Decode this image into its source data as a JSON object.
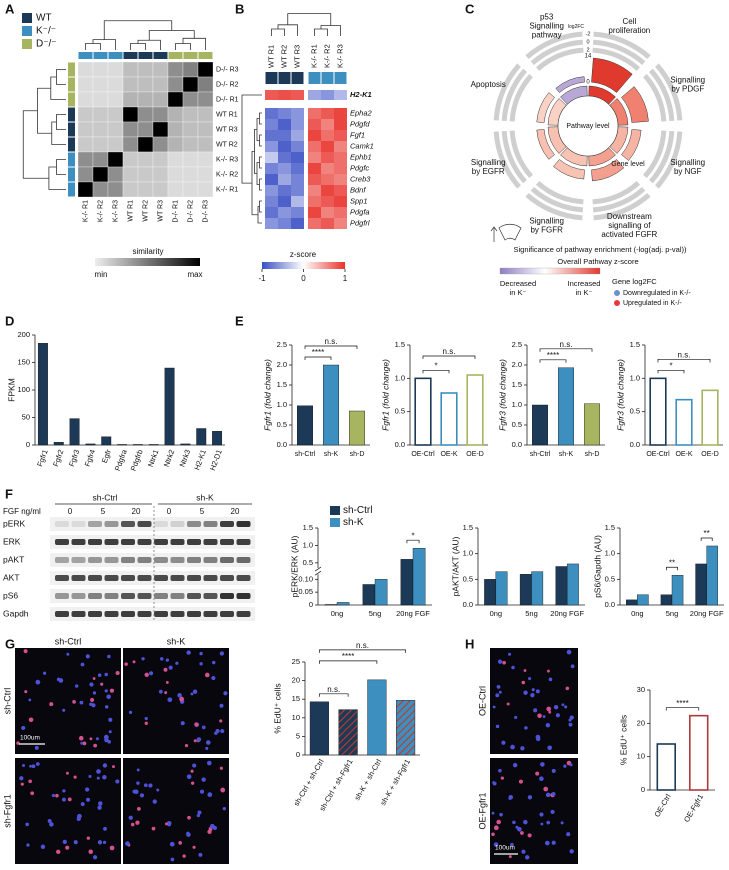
{
  "panel_labels": [
    "A",
    "B",
    "C",
    "D",
    "E",
    "F",
    "G",
    "H"
  ],
  "heatmap_a": {
    "legend": [
      {
        "name": "WT",
        "color": "#1c3a57"
      },
      {
        "name": "K⁻/⁻",
        "color": "#3d8fc0"
      },
      {
        "name": "D⁻/⁻",
        "color": "#a8b560"
      }
    ],
    "rows": [
      "D-/- R3",
      "D-/- R2",
      "D-/- R1",
      "WT R1",
      "WT R3",
      "WT R2",
      "K-/- R3",
      "K-/- R2",
      "K-/- R1"
    ],
    "columns": [
      "K-/- R1",
      "K-/- R2",
      "K-/- R3",
      "WT R1",
      "WT R2",
      "WT R3",
      "D-/- R1",
      "D-/- R2",
      "D-/- R3"
    ],
    "values": [
      [
        0.2,
        0.2,
        0.2,
        0.35,
        0.35,
        0.35,
        0.55,
        0.6,
        1
      ],
      [
        0.2,
        0.2,
        0.2,
        0.35,
        0.35,
        0.35,
        0.55,
        1,
        0.6
      ],
      [
        0.2,
        0.2,
        0.2,
        0.4,
        0.4,
        0.4,
        1,
        0.55,
        0.55
      ],
      [
        0.3,
        0.3,
        0.3,
        1,
        0.55,
        0.55,
        0.4,
        0.35,
        0.35
      ],
      [
        0.3,
        0.3,
        0.3,
        0.55,
        0.55,
        1,
        0.4,
        0.35,
        0.35
      ],
      [
        0.3,
        0.3,
        0.3,
        0.55,
        1,
        0.55,
        0.4,
        0.35,
        0.35
      ],
      [
        0.55,
        0.55,
        1,
        0.3,
        0.3,
        0.3,
        0.2,
        0.2,
        0.2
      ],
      [
        0.55,
        1,
        0.55,
        0.3,
        0.3,
        0.3,
        0.2,
        0.2,
        0.2
      ],
      [
        1,
        0.55,
        0.55,
        0.3,
        0.3,
        0.3,
        0.2,
        0.2,
        0.2
      ]
    ],
    "colorbar_label": "similarity",
    "colorbar_min": "min",
    "colorbar_max": "max"
  },
  "heatmap_b": {
    "columns": [
      "WT R1",
      "WT R2",
      "WT R3",
      "K-/- R1",
      "K-/- R2",
      "K-/- R3"
    ],
    "rows": [
      "H2-K1",
      "Epha2",
      "Pdgfd",
      "Fgf1",
      "Camk1",
      "Ephb1",
      "Pdgfc",
      "Creb3",
      "Bdnf",
      "Spp1",
      "Pdgfa",
      "Pdgfrl"
    ],
    "values": [
      [
        0.8,
        0.85,
        0.8,
        -0.5,
        -0.6,
        -0.4
      ],
      [
        -0.8,
        -0.7,
        -0.6,
        0.7,
        0.8,
        0.9
      ],
      [
        -0.7,
        -0.9,
        -0.6,
        0.8,
        0.6,
        0.9
      ],
      [
        -0.8,
        -0.8,
        -0.5,
        0.9,
        0.7,
        0.8
      ],
      [
        -0.6,
        -0.9,
        -0.7,
        0.7,
        0.9,
        0.6
      ],
      [
        -0.3,
        -0.8,
        -0.9,
        0.6,
        0.8,
        0.7
      ],
      [
        -0.7,
        -0.6,
        -0.8,
        0.9,
        0.6,
        0.7
      ],
      [
        -0.9,
        -0.5,
        -0.7,
        0.8,
        0.7,
        0.6
      ],
      [
        -0.6,
        -0.8,
        -0.7,
        0.6,
        0.9,
        0.8
      ],
      [
        -0.7,
        -0.9,
        -0.4,
        0.7,
        0.8,
        0.9
      ],
      [
        -0.8,
        -0.6,
        -0.7,
        0.9,
        0.6,
        0.7
      ],
      [
        -0.6,
        -0.7,
        -0.9,
        0.7,
        0.8,
        0.6
      ]
    ],
    "colorbar_label": "z-score",
    "zlim": [
      -1,
      1
    ],
    "zticks": [
      -1,
      0,
      1
    ]
  },
  "pathway_circle": {
    "pathways": [
      [
        "p53",
        "Signalling",
        "pathway"
      ],
      [
        "Cell",
        "proliferation"
      ],
      [
        "Signalling",
        "by PDGF"
      ],
      [
        "Signalling",
        "by NGF"
      ],
      [
        "Downstream",
        "signalling of",
        "activated FGFR"
      ],
      [
        "Signalling",
        "by FGFR"
      ],
      [
        "Signalling",
        "by EGFR"
      ],
      [
        "Apoptosis"
      ]
    ],
    "ring_colors": [
      "#b9a8d6",
      "#e03a2f",
      "#f08070",
      "#f6b4a4",
      "#f4a090",
      "#f7c3b2",
      "#f7c0b0",
      "#fad2c5"
    ],
    "enrichment": [
      3,
      13,
      9,
      5,
      6,
      5,
      4,
      4
    ],
    "enrichment_lim": [
      0,
      14
    ],
    "enrichment_ticks": [
      14,
      0
    ],
    "gene_ticks": [
      2,
      0,
      -2
    ],
    "gene_axis_label": "log2FC",
    "center": "Pathway level",
    "gene_level": "Gene level",
    "enrichment_label": "Significance of pathway enrichment (-log(adj. p-val))",
    "zscore_label": "Overall Pathway z-score",
    "decreased": [
      "Decreased",
      "in K⁻"
    ],
    "increased": [
      "Increased",
      "in K⁻"
    ],
    "gene_legend_title": "Gene log2FC",
    "gene_legend": [
      {
        "name": "Downregulated in K-/-",
        "color": "#6b8fd1"
      },
      {
        "name": "Upregulated in K-/-",
        "color": "#e8383d"
      }
    ]
  },
  "blot": {
    "dose_label": "FGF ng/ml",
    "groups": [
      "sh-Ctrl",
      "sh-K"
    ],
    "doses": [
      0,
      5,
      20,
      0,
      5,
      20
    ],
    "proteins": [
      "pERK",
      "ERK",
      "pAKT",
      "AKT",
      "pS6",
      "Gapdh"
    ]
  },
  "images_g": {
    "columns": [
      "sh-Ctrl",
      "sh-K"
    ],
    "rows": [
      "sh-Ctrl",
      "sh-Fgfr1"
    ],
    "scale_bar": "100um"
  },
  "images_h": {
    "rows": [
      "OE-Ctrl",
      "OE-Fgfr1"
    ],
    "scale_bar": "100um"
  },
  "chart_data": [
    {
      "type": "bar",
      "ylabel": "FPKM",
      "categories": [
        "Fgfr1",
        "Fgfr2",
        "Fgfr3",
        "Fgfr4",
        "Egfr",
        "Pdgfra",
        "Pdgfrb",
        "Ntrk1",
        "Ntrk2",
        "Ntrk3",
        "H2-K1",
        "H2-D1"
      ],
      "values": [
        185,
        5,
        48,
        2,
        15,
        1,
        1,
        1,
        140,
        2,
        30,
        25
      ],
      "color": "#1c3a57",
      "ylim": [
        0,
        200
      ],
      "yticks": [
        0,
        50,
        100,
        150,
        200
      ]
    },
    {
      "type": "bar",
      "ylabel": "Fgfr1 (fold change)",
      "categories": [
        "sh-Ctrl",
        "sh-K",
        "sh-D"
      ],
      "values": [
        0.98,
        2.0,
        0.85
      ],
      "colors": [
        "#1c3a57",
        "#3d8fc0",
        "#a8b560"
      ],
      "ylim": [
        0,
        2.5
      ],
      "yticks": [
        {
          "value": 0,
          "label": "0.0"
        },
        {
          "value": 0.5,
          "label": "0.5"
        },
        {
          "value": 1,
          "label": "1.0"
        },
        {
          "value": 1.5,
          "label": "1.5"
        },
        {
          "value": 2,
          "label": "2.0"
        },
        {
          "value": 2.5,
          "label": "2.5"
        }
      ],
      "annotations": [
        {
          "label": "****",
          "between": [
            "sh-Ctrl",
            "sh-K"
          ]
        },
        {
          "label": "n.s.",
          "between": [
            "sh-Ctrl",
            "sh-D"
          ]
        }
      ]
    },
    {
      "type": "bar",
      "ylabel": "Fgfr1 (fold change)",
      "categories": [
        "OE-Ctrl",
        "OE-K",
        "OE-D"
      ],
      "values": [
        1.0,
        0.78,
        1.05
      ],
      "colors": [
        "#1c3a57",
        "#3d8fc0",
        "#a8b560"
      ],
      "hollow": true,
      "ylim": [
        0,
        1.5
      ],
      "yticks": [
        {
          "value": 0,
          "label": "0.0"
        },
        {
          "value": 0.5,
          "label": "0.5"
        },
        {
          "value": 1,
          "label": "1.0"
        },
        {
          "value": 1.5,
          "label": "1.5"
        }
      ],
      "annotations": [
        {
          "label": "*",
          "between": [
            "OE-Ctrl",
            "OE-K"
          ]
        },
        {
          "label": "n.s.",
          "between": [
            "OE-Ctrl",
            "OE-D"
          ]
        }
      ]
    },
    {
      "type": "bar",
      "ylabel": "Fgfr3 (fold change)",
      "categories": [
        "sh-Ctrl",
        "sh-K",
        "sh-D"
      ],
      "values": [
        1.0,
        1.93,
        1.03
      ],
      "colors": [
        "#1c3a57",
        "#3d8fc0",
        "#a8b560"
      ],
      "ylim": [
        0,
        2.5
      ],
      "yticks": [
        {
          "value": 0,
          "label": "0.0"
        },
        {
          "value": 0.5,
          "label": "0.5"
        },
        {
          "value": 1,
          "label": "1.0"
        },
        {
          "value": 1.5,
          "label": "1.5"
        },
        {
          "value": 2,
          "label": "2.0"
        },
        {
          "value": 2.5,
          "label": "2.5"
        }
      ],
      "annotations": [
        {
          "label": "****",
          "between": [
            "sh-Ctrl",
            "sh-K"
          ]
        },
        {
          "label": "n.s.",
          "between": [
            "sh-Ctrl",
            "sh-D"
          ]
        }
      ]
    },
    {
      "type": "bar",
      "ylabel": "Fgfr3 (fold change)",
      "categories": [
        "OE-Ctrl",
        "OE-K",
        "OE-D"
      ],
      "values": [
        1.0,
        0.68,
        0.82
      ],
      "colors": [
        "#1c3a57",
        "#3d8fc0",
        "#a8b560"
      ],
      "hollow": true,
      "ylim": [
        0,
        1.5
      ],
      "yticks": [
        {
          "value": 0,
          "label": "0.0"
        },
        {
          "value": 0.5,
          "label": "0.5"
        },
        {
          "value": 1,
          "label": "1.0"
        },
        {
          "value": 1.5,
          "label": "1.5"
        }
      ],
      "annotations": [
        {
          "label": "*",
          "between": [
            "OE-Ctrl",
            "OE-K"
          ]
        },
        {
          "label": "n.s.",
          "between": [
            "OE-Ctrl",
            "OE-D"
          ]
        }
      ]
    },
    {
      "type": "bar",
      "ylabel": "pERK/ERK (AU)",
      "categories": [
        "0ng",
        "5ng",
        "20ng FGF"
      ],
      "series": [
        {
          "name": "sh-Ctrl",
          "color": "#1c3a57",
          "values": [
            0.002,
            0.08,
            0.6
          ]
        },
        {
          "name": "sh-K",
          "color": "#3d8fc0",
          "values": [
            0.01,
            0.1,
            0.92
          ]
        }
      ],
      "legend": "top-left",
      "ylim": [
        0,
        1.5
      ],
      "ybreak": [
        0.12,
        0.35
      ],
      "yticks": [
        0,
        0.05,
        {
          "value": 0.1,
          "label": "0.10"
        },
        {
          "value": 0.5,
          "label": "0.5"
        },
        {
          "value": 1,
          "label": "1.0"
        },
        {
          "value": 1.5,
          "label": "1.5"
        }
      ],
      "annotations": [
        {
          "label": "*",
          "category": "20ng FGF"
        }
      ]
    },
    {
      "type": "bar",
      "ylabel": "pAKT/AKT (AU)",
      "categories": [
        "0ng",
        "5ng",
        "20ng FGF"
      ],
      "series": [
        {
          "color": "#1c3a57",
          "values": [
            0.5,
            0.6,
            0.75
          ]
        },
        {
          "color": "#3d8fc0",
          "values": [
            0.65,
            0.65,
            0.8
          ]
        }
      ],
      "ylim": [
        0,
        1.5
      ],
      "yticks": [
        {
          "value": 0,
          "label": "0.0"
        },
        {
          "value": 0.5,
          "label": "0.5"
        },
        {
          "value": 1,
          "label": "1.0"
        },
        {
          "value": 1.5,
          "label": "1.5"
        }
      ]
    },
    {
      "type": "bar",
      "ylabel": "pS6/Gapdh (AU)",
      "categories": [
        "0ng",
        "5ng",
        "20ng FGF"
      ],
      "series": [
        {
          "color": "#1c3a57",
          "values": [
            0.1,
            0.2,
            0.8
          ]
        },
        {
          "color": "#3d8fc0",
          "values": [
            0.2,
            0.58,
            1.15
          ]
        }
      ],
      "ylim": [
        0,
        1.5
      ],
      "yticks": [
        {
          "value": 0,
          "label": "0.0"
        },
        {
          "value": 0.5,
          "label": "0.5"
        },
        {
          "value": 1,
          "label": "1.0"
        },
        {
          "value": 1.5,
          "label": "1.5"
        }
      ],
      "annotations": [
        {
          "label": "**",
          "category": "5ng"
        },
        {
          "label": "**",
          "category": "20ng FGF"
        }
      ]
    },
    {
      "type": "bar",
      "ylabel": "% EdU⁺ cells",
      "categories": [
        "sh-Ctrl + sh-Ctrl",
        "sh-Ctrl + sh-Fgfr1",
        "sh-K + sh-Ctrl",
        "sh-K + sh-Fgfr1"
      ],
      "values": [
        14.3,
        12.2,
        20.2,
        14.7
      ],
      "colors": [
        "#1c3a57",
        "#1c3a57",
        "#3d8fc0",
        "#3d8fc0"
      ],
      "hatch": [
        false,
        true,
        false,
        true
      ],
      "hatch_color": "#c0392b",
      "ylim": [
        0,
        25
      ],
      "yticks": [
        0,
        5,
        10,
        15,
        20,
        25
      ],
      "annotations": [
        {
          "label": "n.s.",
          "between": [
            "sh-Ctrl + sh-Ctrl",
            "sh-Ctrl + sh-Fgfr1"
          ]
        },
        {
          "label": "****",
          "between": [
            "sh-Ctrl + sh-Ctrl",
            "sh-K + sh-Ctrl"
          ]
        },
        {
          "label": "n.s.",
          "between": [
            "sh-Ctrl + sh-Ctrl",
            "sh-K + sh-Fgfr1"
          ]
        }
      ]
    },
    {
      "type": "bar",
      "ylabel": "% EdU⁺ cells",
      "categories": [
        "OE-Ctrl",
        "OE-Fgfr1"
      ],
      "values": [
        13.8,
        22.3
      ],
      "colors": [
        "#1c3a57",
        "#b03a3a"
      ],
      "hollow": true,
      "ylim": [
        0,
        30
      ],
      "yticks": [
        0,
        10,
        20,
        30
      ],
      "annotations": [
        {
          "label": "****",
          "between": [
            "OE-Ctrl",
            "OE-Fgfr1"
          ]
        }
      ]
    }
  ]
}
